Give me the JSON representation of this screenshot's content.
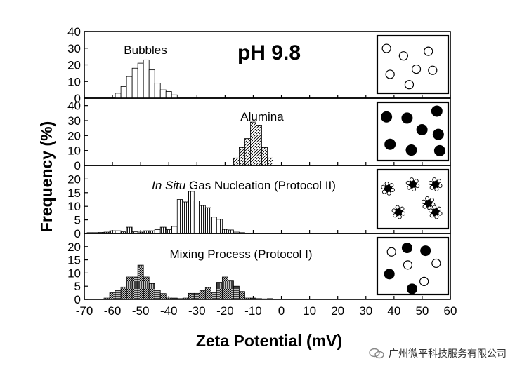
{
  "figure": {
    "ylabel": "Frequency (%)",
    "xlabel": "Zeta Potential (mV)",
    "x_ticks": [
      "-70",
      "-60",
      "-50",
      "-40",
      "-30",
      "-20",
      "-10",
      "0",
      "10",
      "20",
      "30",
      "40",
      "50",
      "60"
    ],
    "ph_label": "pH 9.8"
  },
  "watermark": {
    "text": "广州微平科技服务有限公司"
  },
  "chart_data": [
    {
      "type": "bar",
      "panel": "Bubbles",
      "title": "Bubbles",
      "fill": "open",
      "ylim": [
        0,
        40
      ],
      "y_ticks": [
        "0",
        "10",
        "20",
        "30",
        "40"
      ],
      "xlim": [
        -70,
        60
      ],
      "x": [
        -58,
        -56,
        -54,
        -52,
        -50,
        -48,
        -46,
        -44,
        -42,
        -40,
        -38
      ],
      "values": [
        3,
        7,
        13,
        18,
        21,
        23,
        17,
        9,
        5,
        4,
        2
      ],
      "inset": "open-circles"
    },
    {
      "type": "bar",
      "panel": "Alumina",
      "title": "Alumina",
      "fill": "diagonal-hatch",
      "ylim": [
        0,
        45
      ],
      "y_ticks": [
        "0",
        "10",
        "20",
        "30",
        "40"
      ],
      "xlim": [
        -70,
        60
      ],
      "x": [
        -16,
        -14,
        -12,
        -10,
        -8,
        -6,
        -4
      ],
      "values": [
        5,
        12,
        18,
        29,
        27,
        12,
        5
      ],
      "inset": "filled-circles"
    },
    {
      "type": "bar",
      "panel": "In Situ Gas Nucleation (Protocol II)",
      "title_italic": "In Situ",
      "title_rest": " Gas Nucleation (Protocol II)",
      "fill": "vertical-hatch",
      "ylim": [
        0,
        25
      ],
      "y_ticks": [
        "0",
        "5",
        "10",
        "15",
        "20"
      ],
      "xlim": [
        -70,
        60
      ],
      "x": [
        -68,
        -66,
        -64,
        -62,
        -60,
        -58,
        -56,
        -54,
        -52,
        -50,
        -48,
        -46,
        -44,
        -42,
        -40,
        -38,
        -36,
        -34,
        -32,
        -30,
        -28,
        -26,
        -24,
        -22,
        -20,
        -18,
        -16,
        -14
      ],
      "values": [
        0.3,
        0.3,
        0.4,
        0.5,
        1,
        1,
        0.6,
        2.3,
        0.6,
        0.5,
        1,
        1,
        1.4,
        2.3,
        1.4,
        2.6,
        12.5,
        11.6,
        15.5,
        12,
        10.3,
        9.5,
        6,
        5.2,
        1.5,
        1.3,
        0.5,
        0.3
      ],
      "inset": "coated-particles"
    },
    {
      "type": "bar",
      "panel": "Mixing Process (Protocol I)",
      "title": "Mixing Process (Protocol I)",
      "fill": "crosshatch",
      "ylim": [
        0,
        25
      ],
      "y_ticks": [
        "0",
        "5",
        "10",
        "15",
        "20"
      ],
      "xlim": [
        -70,
        60
      ],
      "x": [
        -62,
        -60,
        -58,
        -56,
        -54,
        -52,
        -50,
        -48,
        -46,
        -44,
        -42,
        -40,
        -38,
        -36,
        -34,
        -32,
        -30,
        -28,
        -26,
        -24,
        -22,
        -20,
        -18,
        -16,
        -14,
        -12,
        -10,
        -8,
        -6,
        -4
      ],
      "values": [
        0.5,
        2.5,
        3.5,
        4.7,
        8.5,
        8.5,
        13,
        8.5,
        6,
        3.5,
        2.2,
        0.5,
        0.5,
        0.3,
        0.5,
        2.3,
        2.3,
        3.3,
        4.5,
        2.5,
        6.5,
        8.5,
        7,
        5,
        3,
        0.5,
        0.5,
        0.3,
        0.2,
        0.3
      ],
      "inset": "mixed-circles"
    }
  ]
}
